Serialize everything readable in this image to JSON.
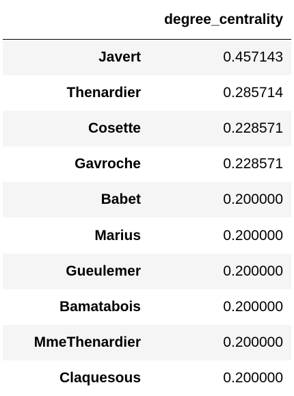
{
  "table": {
    "index_header": "",
    "columns": [
      "degree_centrality"
    ],
    "rows": [
      {
        "index": "Javert",
        "degree_centrality": "0.457143"
      },
      {
        "index": "Thenardier",
        "degree_centrality": "0.285714"
      },
      {
        "index": "Cosette",
        "degree_centrality": "0.228571"
      },
      {
        "index": "Gavroche",
        "degree_centrality": "0.228571"
      },
      {
        "index": "Babet",
        "degree_centrality": "0.200000"
      },
      {
        "index": "Marius",
        "degree_centrality": "0.200000"
      },
      {
        "index": "Gueulemer",
        "degree_centrality": "0.200000"
      },
      {
        "index": "Bamatabois",
        "degree_centrality": "0.200000"
      },
      {
        "index": "MmeThenardier",
        "degree_centrality": "0.200000"
      },
      {
        "index": "Claquesous",
        "degree_centrality": "0.200000"
      }
    ]
  },
  "colors": {
    "stripe": "#f5f5f5",
    "header_rule": "#000000",
    "text": "#000000"
  }
}
